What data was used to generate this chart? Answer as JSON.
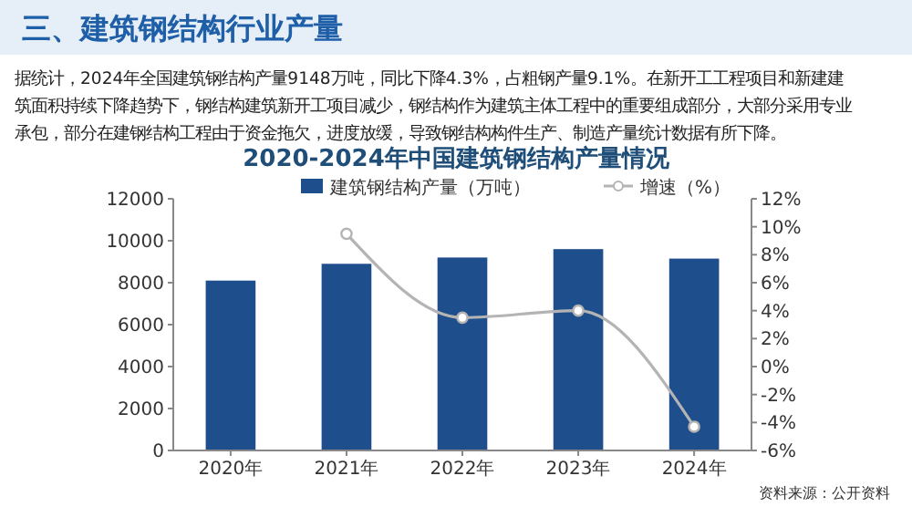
{
  "chart_data": {
    "type": "bar",
    "title": "2020-2024年中国建筑钢结构产量情况",
    "annotations": [
      "三、建筑钢结构行业产量",
      "据统计，2024年全国建筑钢结构产量9148万吨，同比下降4.3%，占粗钢产量9.1%。在新开工工程项目和新建建筑面积持续下降趋势下，钢结构建筑新开工项目减少，钢结构作为建筑主体工程中的重要组成部分，大部分采用专业承包，部分在建钢结构工程由于资金拖欠，进度放缓，导致钢结构构件生产、制造产量统计数据有所下降。",
      "资料来源：公开资料"
    ],
    "categories": [
      "2020年",
      "2021年",
      "2022年",
      "2023年",
      "2024年"
    ],
    "series": [
      {
        "name": "建筑钢结构产量（万吨）",
        "color": "#1f4e8c",
        "values": [
          8100,
          8900,
          9200,
          9600,
          9148
        ]
      },
      {
        "name": "增速（%）",
        "type": "line",
        "axis": "y2",
        "color": "#b4b4b4",
        "marker": "circle",
        "values": [
          null,
          9.5,
          3.5,
          4.0,
          -4.3
        ]
      }
    ],
    "ylim": [
      0,
      12000
    ],
    "yticks": [
      0,
      2000,
      4000,
      6000,
      8000,
      10000,
      12000
    ],
    "y2lim": [
      -6,
      12
    ],
    "y2ticks": [
      {
        "value": -6,
        "label": "-6%"
      },
      {
        "value": -4,
        "label": "-4%"
      },
      {
        "value": -2,
        "label": "-2%"
      },
      {
        "value": 0,
        "label": "0%"
      },
      {
        "value": 2,
        "label": "2%"
      },
      {
        "value": 4,
        "label": "4%"
      },
      {
        "value": 6,
        "label": "6%"
      },
      {
        "value": 8,
        "label": "8%"
      },
      {
        "value": 10,
        "label": "10%"
      },
      {
        "value": 12,
        "label": "12%"
      }
    ],
    "legend": "top",
    "grid": false
  }
}
